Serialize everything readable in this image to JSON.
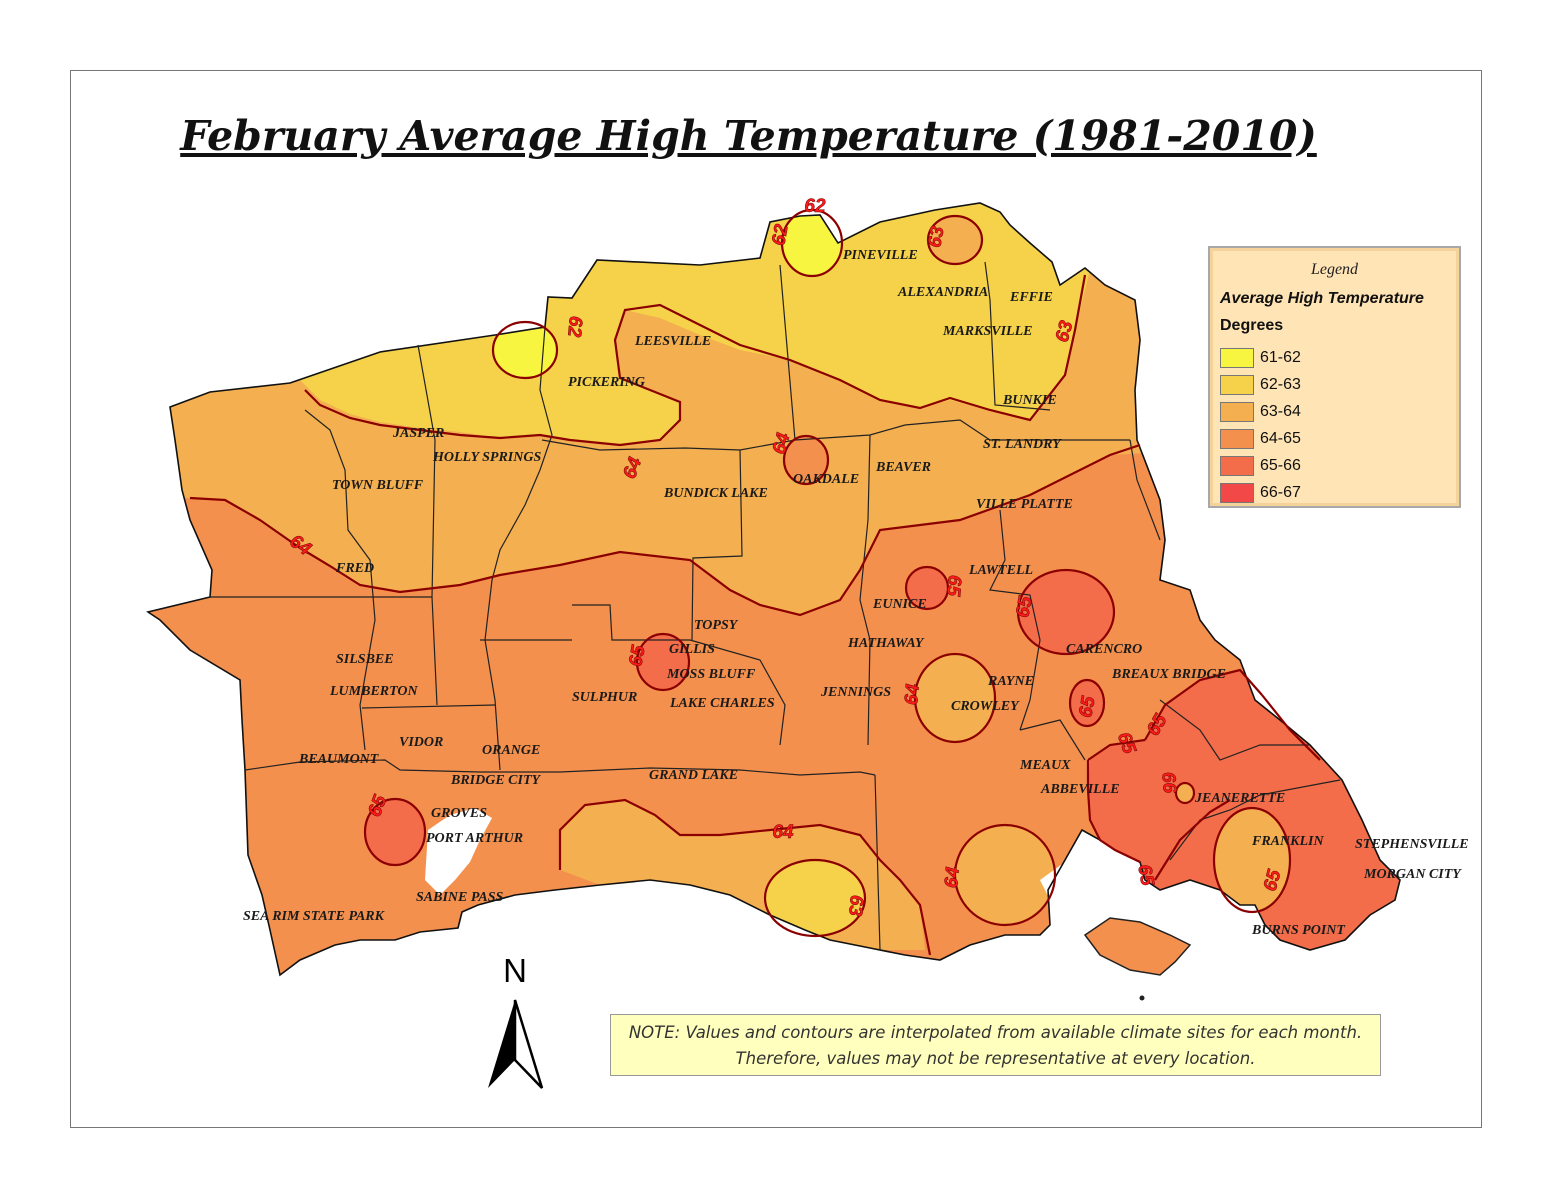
{
  "title": "February Average High Temperature (1981-2010)",
  "legend": {
    "title": "Legend",
    "subtitle": "Average High Temperature",
    "units": "Degrees",
    "classes": [
      {
        "label": "61-62",
        "color": "#f7f540"
      },
      {
        "label": "62-63",
        "color": "#f5d24a"
      },
      {
        "label": "63-64",
        "color": "#f4af50"
      },
      {
        "label": "64-65",
        "color": "#f4904e"
      },
      {
        "label": "65-66",
        "color": "#f46d4a"
      },
      {
        "label": "66-67",
        "color": "#f24848"
      }
    ]
  },
  "contour_labels": [
    "62",
    "62",
    "62",
    "63",
    "63",
    "63",
    "64",
    "64",
    "64",
    "64",
    "64",
    "64",
    "65",
    "65",
    "65",
    "65",
    "65",
    "65",
    "65",
    "65",
    "65",
    "66"
  ],
  "cities": {
    "pineville": "PINEVILLE",
    "alexandria": "ALEXANDRIA",
    "effie": "EFFIE",
    "marksville": "MARKSVILLE",
    "leesville": "LEESVILLE",
    "pickering": "PICKERING",
    "bunkie": "BUNKIE",
    "st_landry": "ST. LANDRY",
    "jasper": "JASPER",
    "holly_springs": "HOLLY SPRINGS",
    "town_bluff": "TOWN BLUFF",
    "oakdale": "OAKDALE",
    "beaver": "BEAVER",
    "bundick_lake": "BUNDICK LAKE",
    "ville_platte": "VILLE PLATTE",
    "fred": "FRED",
    "lawtell": "LAWTELL",
    "eunice": "EUNICE",
    "topsy": "TOPSY",
    "hathaway": "HATHAWAY",
    "gillis": "GILLIS",
    "carencro": "CARENCRO",
    "silsbee": "SILSBEE",
    "moss_bluff": "MOSS BLUFF",
    "breaux_bridge": "BREAUX BRIDGE",
    "rayne": "RAYNE",
    "lumberton": "LUMBERTON",
    "sulphur": "SULPHUR",
    "jennings": "JENNINGS",
    "lake_charles": "LAKE CHARLES",
    "crowley": "CROWLEY",
    "vidor": "VIDOR",
    "orange": "ORANGE",
    "beaumont": "BEAUMONT",
    "meaux": "MEAUX",
    "grand_lake": "GRAND LAKE",
    "bridge_city": "BRIDGE CITY",
    "abbeville": "ABBEVILLE",
    "jeanerette": "JEANERETTE",
    "groves": "GROVES",
    "port_arthur": "PORT ARTHUR",
    "franklin": "FRANKLIN",
    "stephensville": "STEPHENSVILLE",
    "morgan_city": "MORGAN CITY",
    "sabine_pass": "SABINE PASS",
    "sea_rim": "SEA RIM STATE PARK",
    "burns_point": "BURNS POINT"
  },
  "north_arrow": "N",
  "note": {
    "line1": "NOTE: Values and contours are interpolated from available climate sites for each month.",
    "line2": "Therefore, values may not be representative at every location."
  }
}
